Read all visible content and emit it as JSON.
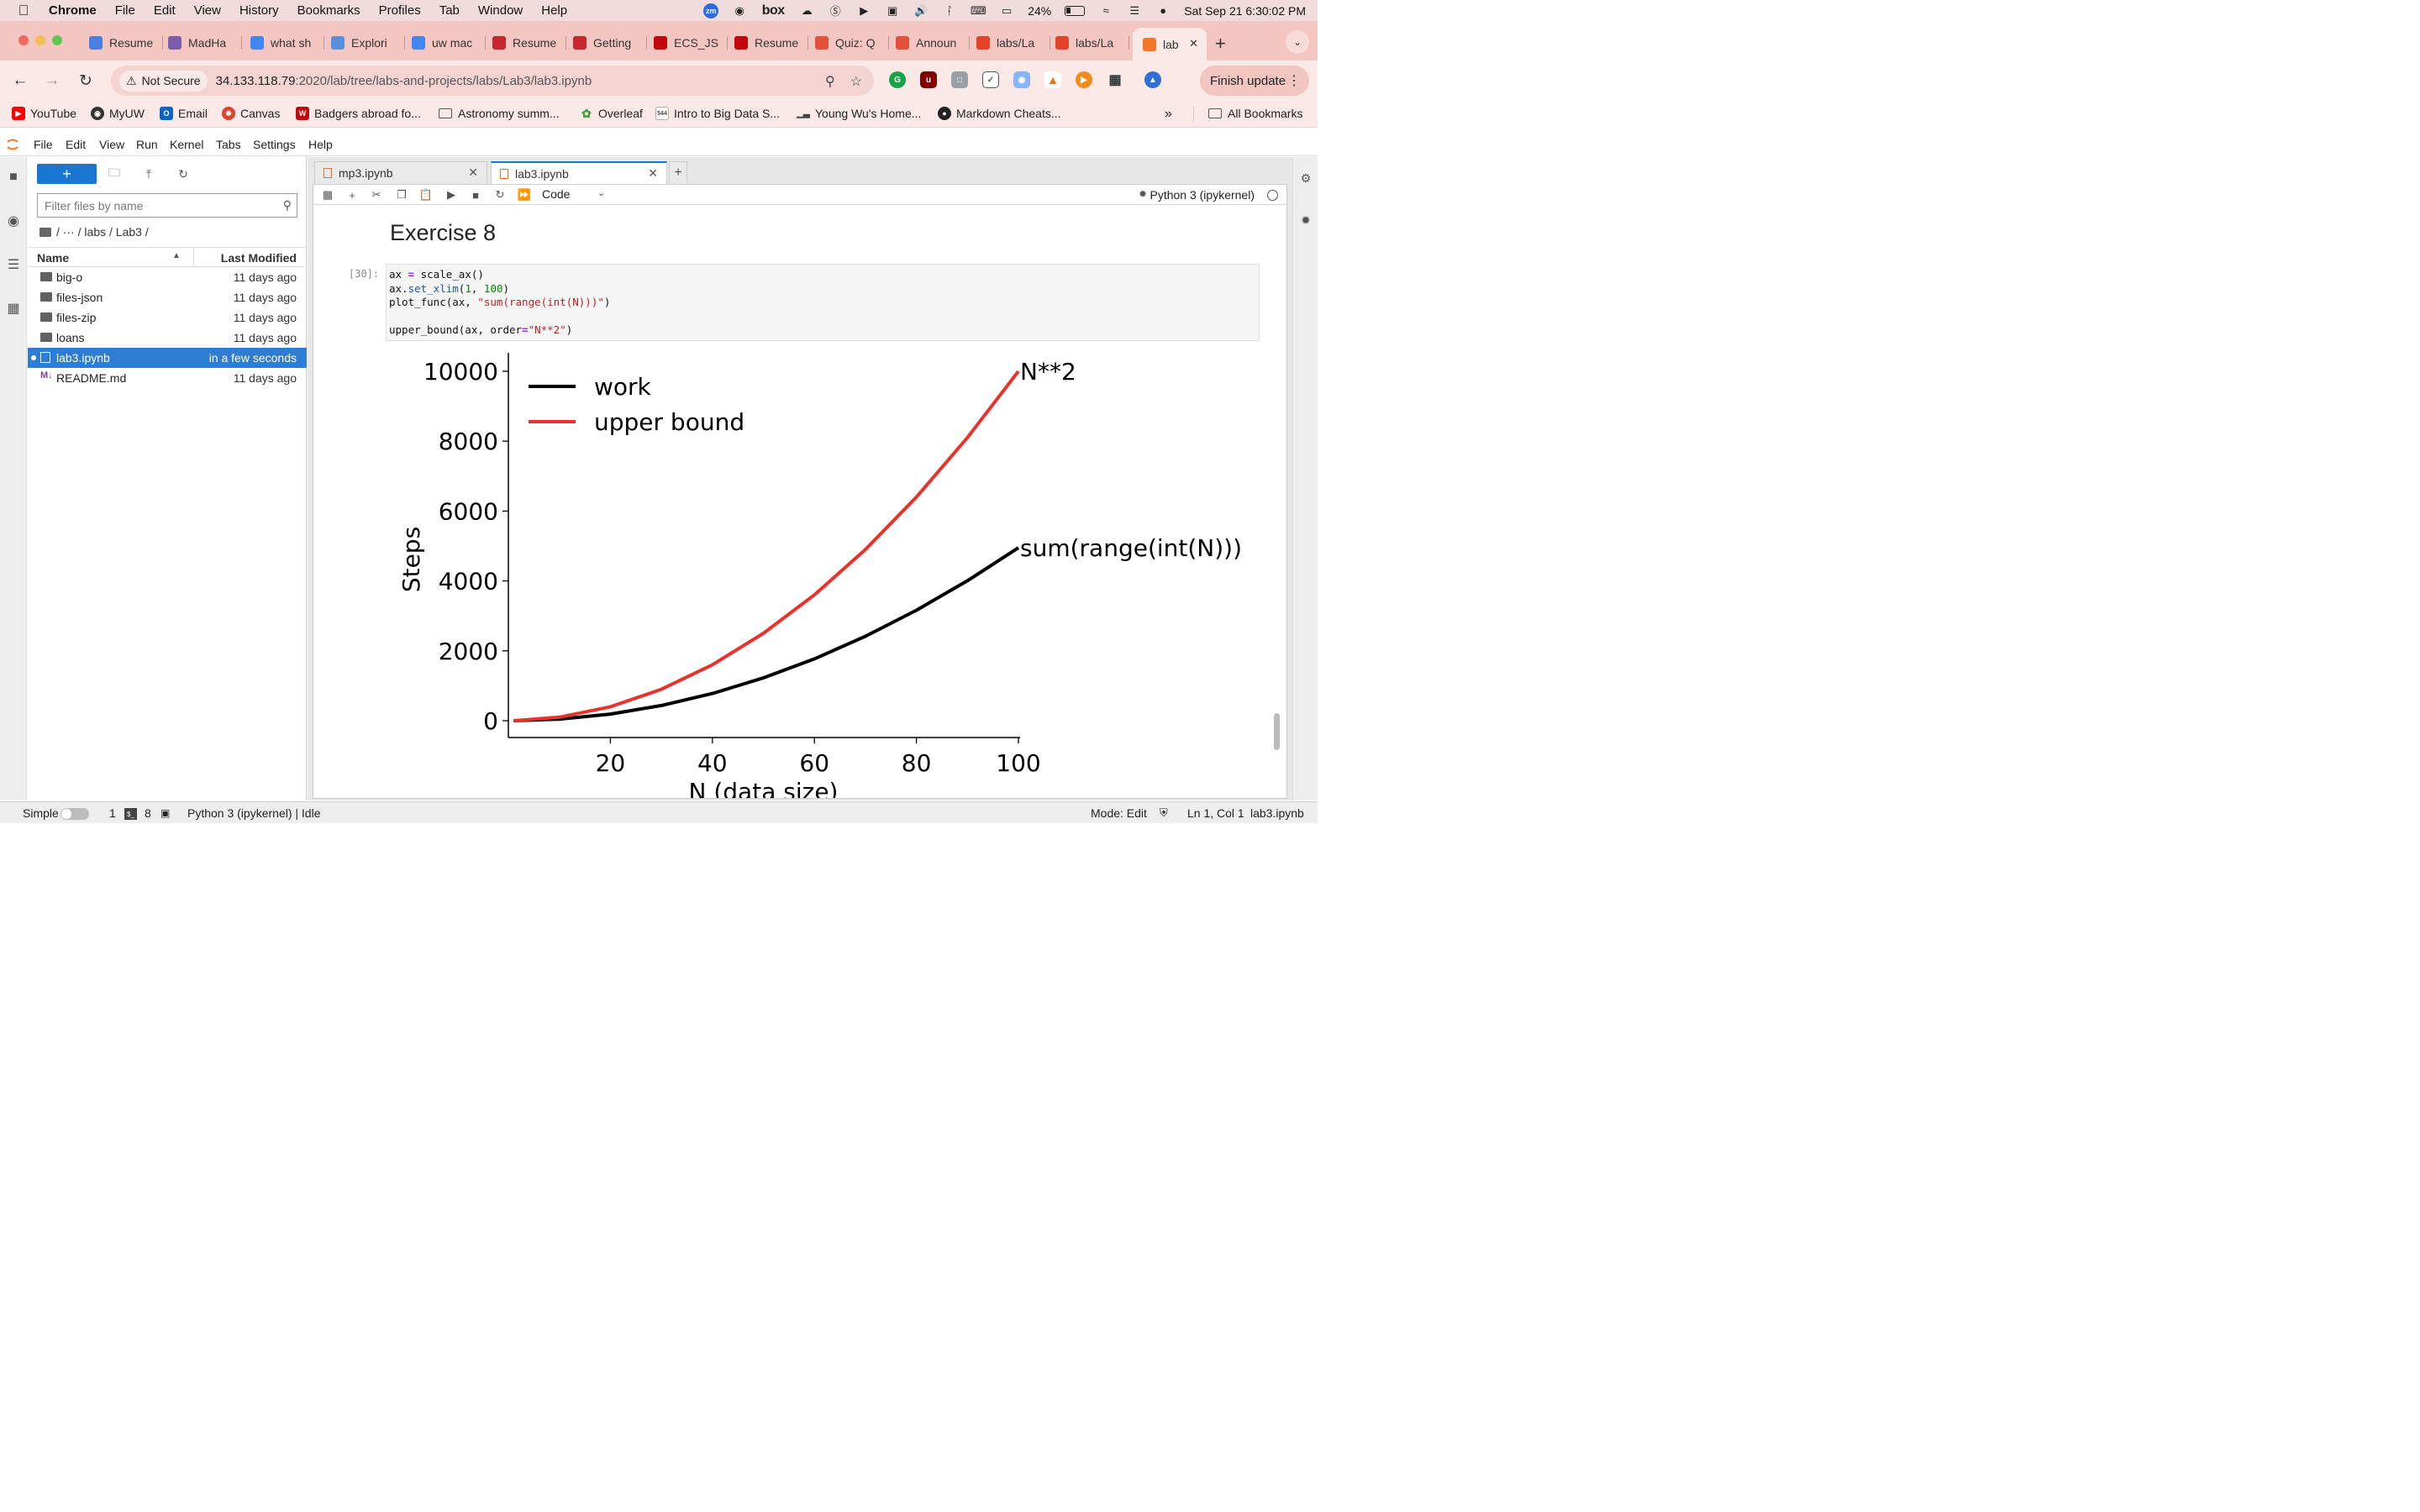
{
  "macos": {
    "menu": [
      "Chrome",
      "File",
      "Edit",
      "View",
      "History",
      "Bookmarks",
      "Profiles",
      "Tab",
      "Window",
      "Help"
    ],
    "battery": "24%",
    "datetime": "Sat Sep 21  6:30:02 PM"
  },
  "chrome": {
    "tabs": [
      {
        "title": "Resume",
        "color": "#4a7fe0"
      },
      {
        "title": "MadHa",
        "color": "#7b5ea7"
      },
      {
        "title": "what sh",
        "color": "#4285f4"
      },
      {
        "title": "Explori",
        "color": "#5b8fd9"
      },
      {
        "title": "uw mac",
        "color": "#4285f4"
      },
      {
        "title": "Resume",
        "color": "#c5282f"
      },
      {
        "title": "Getting",
        "color": "#c5282f"
      },
      {
        "title": "ECS_JS",
        "color": "#c5050c"
      },
      {
        "title": "Resume",
        "color": "#c5050c"
      },
      {
        "title": "Quiz: Q",
        "color": "#e2513a"
      },
      {
        "title": "Announ",
        "color": "#e2513a"
      },
      {
        "title": "labs/La",
        "color": "#e24329"
      },
      {
        "title": "labs/La",
        "color": "#e24329"
      },
      {
        "title": "lab",
        "color": "#f37726"
      }
    ],
    "security_label": "Not Secure",
    "url_host": "34.133.118.79",
    "url_path": ":2020/lab/tree/labs-and-projects/labs/Lab3/lab3.ipynb",
    "finish_update": "Finish update",
    "bookmarks": [
      "YouTube",
      "MyUW",
      "Email",
      "Canvas",
      "Badgers abroad fo...",
      "Astronomy summ...",
      "Overleaf",
      "Intro to Big Data S...",
      "Young Wu's Home...",
      "Markdown Cheats..."
    ],
    "all_bookmarks": "All Bookmarks"
  },
  "jupyter": {
    "menu": [
      "File",
      "Edit",
      "View",
      "Run",
      "Kernel",
      "Tabs",
      "Settings",
      "Help"
    ],
    "filter_placeholder": "Filter files by name",
    "breadcrumb": "/ ··· / labs / Lab3 /",
    "col_name": "Name",
    "col_modified": "Last Modified",
    "files": [
      {
        "name": "big-o",
        "modified": "11 days ago",
        "type": "folder"
      },
      {
        "name": "files-json",
        "modified": "11 days ago",
        "type": "folder"
      },
      {
        "name": "files-zip",
        "modified": "11 days ago",
        "type": "folder"
      },
      {
        "name": "loans",
        "modified": "11 days ago",
        "type": "folder"
      },
      {
        "name": "lab3.ipynb",
        "modified": "in a few seconds",
        "type": "notebook"
      },
      {
        "name": "README.md",
        "modified": "11 days ago",
        "type": "markdown"
      }
    ],
    "doc_tabs": [
      "mp3.ipynb",
      "lab3.ipynb"
    ],
    "cell_type": "Code",
    "kernel": "Python 3 (ipykernel)",
    "heading": "Exercise 8",
    "prompt": "[30]:",
    "code_lines": [
      "ax = scale_ax()",
      "ax.set_xlim(1, 100)",
      "plot_func(ax, \"sum(range(int(N)))\")",
      "",
      "upper_bound(ax, order=\"N**2\")"
    ],
    "status": {
      "mode_label": "Simple",
      "count1": "1",
      "count2": "8",
      "kernel_status": "Python 3 (ipykernel) | Idle",
      "edit_mode": "Mode: Edit",
      "cursor": "Ln 1, Col 1",
      "filename": "lab3.ipynb"
    }
  },
  "chart_data": {
    "type": "line",
    "xlabel": "N (data size)",
    "ylabel": "Steps",
    "xlim": [
      1,
      100
    ],
    "ylim": [
      0,
      10000
    ],
    "xticks": [
      20,
      40,
      60,
      80,
      100
    ],
    "yticks": [
      0,
      2000,
      4000,
      6000,
      8000,
      10000
    ],
    "legend": "top-left",
    "series": [
      {
        "name": "work",
        "color": "#000000",
        "label": "sum(range(int(N)))",
        "x": [
          1,
          10,
          20,
          30,
          40,
          50,
          60,
          70,
          80,
          90,
          100
        ],
        "values": [
          0,
          45,
          190,
          435,
          780,
          1225,
          1770,
          2415,
          3160,
          4005,
          4950
        ]
      },
      {
        "name": "upper bound",
        "color": "#e8322b",
        "label": "N**2",
        "x": [
          1,
          10,
          20,
          30,
          40,
          50,
          60,
          70,
          80,
          90,
          100
        ],
        "values": [
          1,
          100,
          400,
          900,
          1600,
          2500,
          3600,
          4900,
          6400,
          8100,
          10000
        ]
      }
    ]
  }
}
